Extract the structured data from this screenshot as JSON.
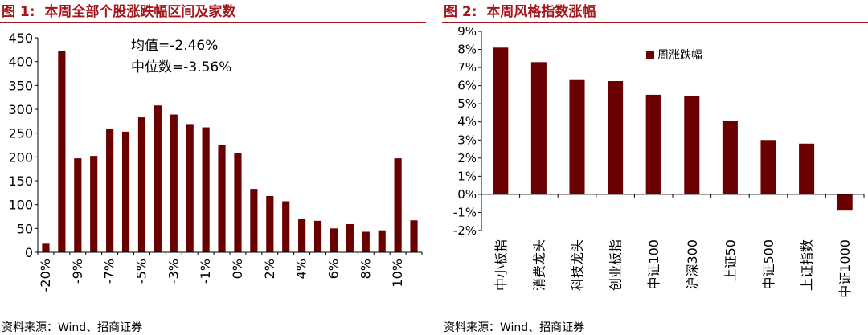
{
  "figures": [
    {
      "label": "图 1:",
      "title": "本周全部个股涨跌幅区间及家数",
      "source": "资料来源：Wind、招商证券",
      "annotations": [
        "均值=-2.46%",
        "中位数=-3.56%"
      ]
    },
    {
      "label": "图 2:",
      "title": "本周风格指数涨幅",
      "source": "资料来源：Wind、招商证券"
    }
  ],
  "chart_data": [
    {
      "type": "bar",
      "title": "本周全部个股涨跌幅区间及家数",
      "bar_color": "#6b0000",
      "values": [
        18,
        422,
        197,
        202,
        259,
        253,
        283,
        308,
        289,
        269,
        262,
        225,
        209,
        133,
        118,
        107,
        70,
        66,
        50,
        59,
        43,
        46,
        197,
        67
      ],
      "x_tick_labels": [
        "-20%",
        "-9%",
        "-7%",
        "-5%",
        "-3%",
        "-1%",
        "0%",
        "2%",
        "4%",
        "6%",
        "8%",
        "10%"
      ],
      "x_tick_label_every": 2,
      "y_ticks": [
        "0",
        "50",
        "100",
        "150",
        "200",
        "250",
        "300",
        "350",
        "400",
        "450"
      ],
      "ylim": [
        0,
        450
      ],
      "grid": false
    },
    {
      "type": "bar",
      "title": "本周风格指数涨幅",
      "bar_color": "#6b0000",
      "categories": [
        "中小板指",
        "消费龙头",
        "科技龙头",
        "创业板指",
        "中证100",
        "沪深300",
        "上证50",
        "中证500",
        "上证指数",
        "中证1000"
      ],
      "series": [
        {
          "name": "周涨跌幅",
          "values": [
            8.1,
            7.3,
            6.35,
            6.25,
            5.5,
            5.45,
            4.05,
            3.0,
            2.8,
            -0.9
          ]
        }
      ],
      "y_ticks": [
        "-2%",
        "-1%",
        "0%",
        "1%",
        "2%",
        "3%",
        "4%",
        "5%",
        "6%",
        "7%",
        "8%",
        "9%"
      ],
      "ylim": [
        -2,
        9
      ],
      "legend_position": "top-center",
      "grid": false
    }
  ]
}
